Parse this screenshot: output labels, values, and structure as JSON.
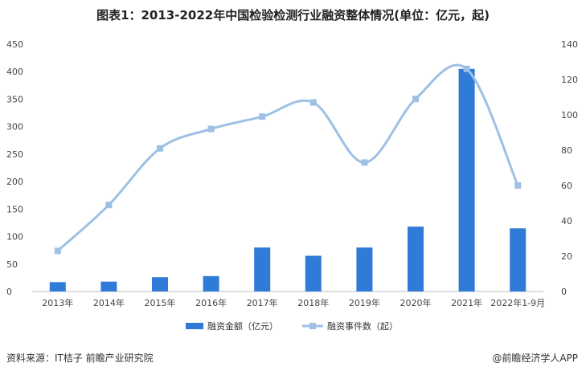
{
  "title": "图表1：2013-2022年中国检验检测行业融资整体情况(单位：亿元，起)",
  "source": "资料来源：IT桔子 前瞻产业研究院",
  "credit": "@前瞻经济学人APP",
  "colors": {
    "bar": "#2f7bd8",
    "line": "#9ec0e4",
    "axis": "#bfbfbf"
  },
  "chart_data": {
    "type": "bar",
    "categories": [
      "2013年",
      "2014年",
      "2015年",
      "2016年",
      "2017年",
      "2018年",
      "2019年",
      "2020年",
      "2021年",
      "2022年1-9月"
    ],
    "series": [
      {
        "name": "融资金额（亿元）",
        "type": "bar",
        "axis": "left",
        "values": [
          17,
          18,
          26,
          28,
          80,
          65,
          80,
          118,
          405,
          115
        ]
      },
      {
        "name": "融资事件数（起）",
        "type": "line",
        "axis": "right",
        "values": [
          23,
          49,
          81,
          92,
          99,
          107,
          73,
          109,
          126,
          60
        ]
      }
    ],
    "y_left": {
      "min": 0,
      "max": 450,
      "ticks": [
        0,
        50,
        100,
        150,
        200,
        250,
        300,
        350,
        400,
        450
      ]
    },
    "y_right": {
      "min": 0,
      "max": 140,
      "ticks": [
        0,
        20,
        40,
        60,
        80,
        100,
        120,
        140
      ]
    },
    "legend": "bottom"
  }
}
